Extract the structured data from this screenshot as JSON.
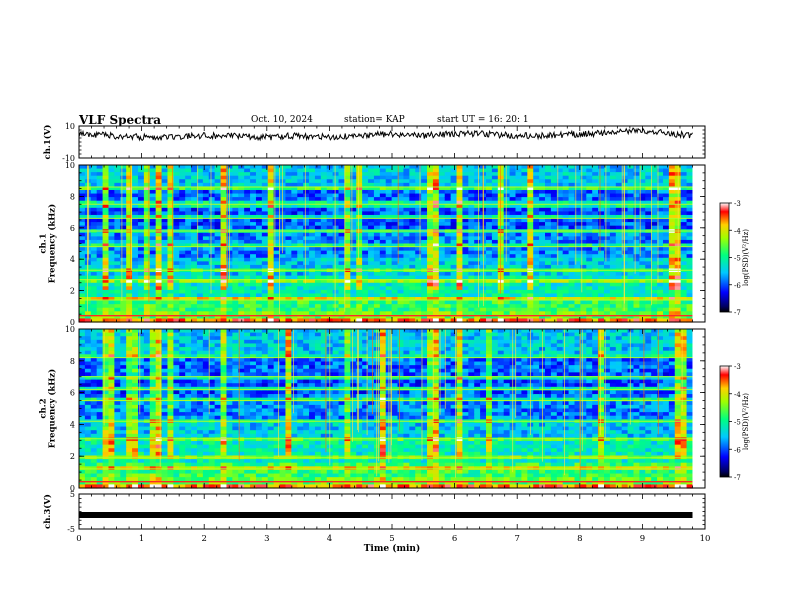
{
  "header": {
    "title": "VLF Spectra",
    "date": "Oct. 10, 2024",
    "station": "station= KAP",
    "start": "start  UT  =   16: 20: 1"
  },
  "chart_data": [
    {
      "type": "line",
      "panel": "waveform-ch1",
      "ylabel": "ch.1(V)",
      "ylim": [
        -10,
        10
      ],
      "ytick_labels": [
        "10",
        "-10"
      ],
      "xlim": [
        0,
        10
      ],
      "series_description": "noisy signal around 3-5 V",
      "x": [
        0,
        0.5,
        1,
        1.5,
        2,
        2.5,
        3,
        3.5,
        4,
        4.5,
        5,
        5.5,
        6,
        6.5,
        7,
        7.5,
        8,
        8.5,
        9,
        9.5,
        9.8
      ],
      "y": [
        5,
        4,
        3,
        3,
        4,
        4,
        3,
        4,
        3,
        4,
        5,
        4,
        5,
        5,
        4,
        4,
        5,
        6,
        7,
        5,
        4
      ]
    },
    {
      "type": "heatmap",
      "panel": "spectrogram-ch1",
      "ylabel": "ch.1\nFrequency (kHz)",
      "ylabel_lines": [
        "ch.1",
        "Frequency (kHz)"
      ],
      "ylim": [
        0,
        10
      ],
      "ytick_labels": [
        "0",
        "2",
        "4",
        "6",
        "8",
        "10"
      ],
      "xlim": [
        0,
        10
      ],
      "colorbar": {
        "label": "log(PSD)(V²/Hz)",
        "range": [
          -7,
          -3
        ],
        "tick_labels": [
          "-3",
          "-4",
          "-5",
          "-6",
          "-7"
        ]
      }
    },
    {
      "type": "heatmap",
      "panel": "spectrogram-ch2",
      "ylabel": "ch.2\nFrequency (kHz)",
      "ylabel_lines": [
        "ch.2",
        "Frequency (kHz)"
      ],
      "ylim": [
        0,
        10
      ],
      "ytick_labels": [
        "0",
        "2",
        "4",
        "6",
        "8",
        "10"
      ],
      "xlim": [
        0,
        10
      ],
      "colorbar": {
        "label": "log(PSD)(V²/Hz)",
        "range": [
          -7,
          -3
        ],
        "tick_labels": [
          "-3",
          "-4",
          "-5",
          "-6",
          "-7"
        ]
      }
    },
    {
      "type": "line",
      "panel": "waveform-ch3",
      "ylabel": "ch.3(V)",
      "ylim": [
        -5,
        5
      ],
      "ytick_labels": [
        "5",
        "-5"
      ],
      "xlim": [
        0,
        10
      ],
      "x": [
        0,
        9.8
      ],
      "y": [
        -1,
        -1
      ]
    }
  ],
  "xaxis": {
    "label": "Time  (min)",
    "range": [
      0,
      10
    ],
    "tick_labels": [
      "0",
      "1",
      "2",
      "3",
      "4",
      "5",
      "6",
      "7",
      "8",
      "9",
      "10"
    ]
  },
  "colors": {
    "axes": "#000000",
    "trace": "#000000",
    "background": "#ffffff"
  }
}
